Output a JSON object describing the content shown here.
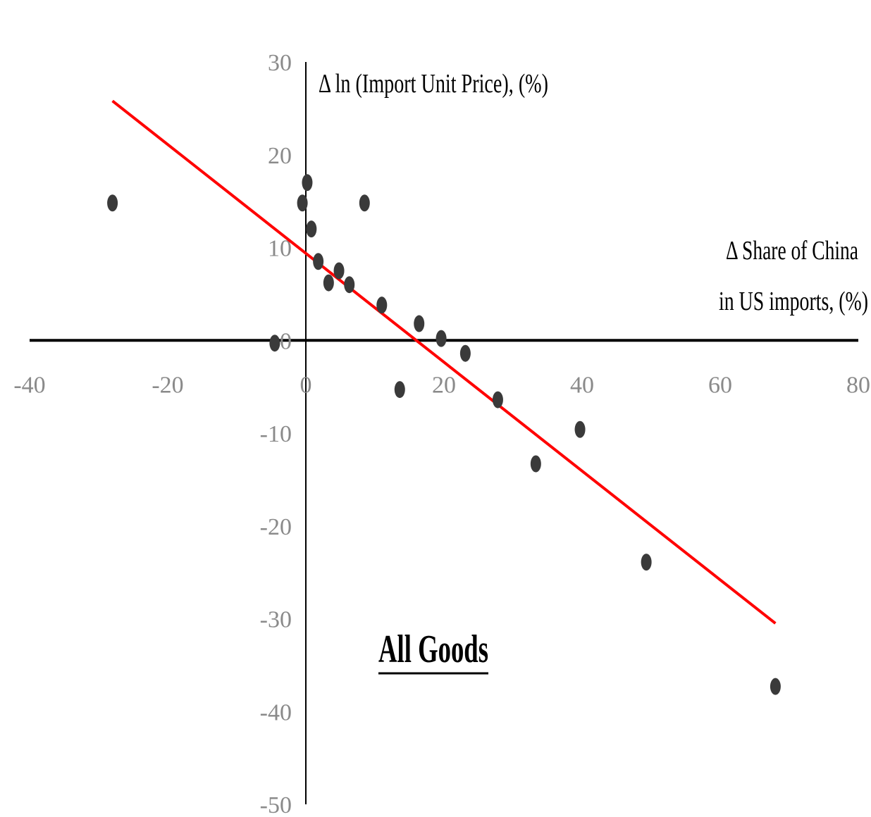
{
  "chart_data": {
    "type": "scatter",
    "title": "",
    "annotation": "All Goods",
    "xlabel_lines": [
      "Δ Share of China",
      "in US imports, (%)"
    ],
    "ylabel": "Δ ln (Import Unit Price), (%)",
    "xlim": [
      -40,
      80
    ],
    "ylim": [
      -50,
      30
    ],
    "xticks": [
      "-40",
      "-20",
      "0",
      "20",
      "40",
      "60",
      "80"
    ],
    "yticks": [
      "30",
      "20",
      "10",
      "0",
      "-10",
      "-20",
      "-30",
      "-40",
      "-50"
    ],
    "grid": false,
    "legend": "none",
    "point_color": "#3a3a3a",
    "fit_color": "#ff0000",
    "points": [
      {
        "x": -28,
        "y": 14.8
      },
      {
        "x": -4.5,
        "y": -0.3
      },
      {
        "x": -0.5,
        "y": 14.8
      },
      {
        "x": 0.2,
        "y": 17
      },
      {
        "x": 0.8,
        "y": 12
      },
      {
        "x": 1.8,
        "y": 8.5
      },
      {
        "x": 3.3,
        "y": 6.2
      },
      {
        "x": 4.8,
        "y": 7.5
      },
      {
        "x": 6.3,
        "y": 6
      },
      {
        "x": 8.5,
        "y": 14.8
      },
      {
        "x": 11,
        "y": 3.8
      },
      {
        "x": 13.6,
        "y": -5.3
      },
      {
        "x": 16.4,
        "y": 1.8
      },
      {
        "x": 19.6,
        "y": 0.2
      },
      {
        "x": 23.1,
        "y": -1.4
      },
      {
        "x": 27.8,
        "y": -6.4
      },
      {
        "x": 33.3,
        "y": -13.3
      },
      {
        "x": 39.7,
        "y": -9.6
      },
      {
        "x": 49.3,
        "y": -23.9
      },
      {
        "x": 68,
        "y": -37.3
      }
    ],
    "fit_line": {
      "x": [
        -28,
        68
      ],
      "y": [
        25.8,
        -30.5
      ]
    }
  }
}
